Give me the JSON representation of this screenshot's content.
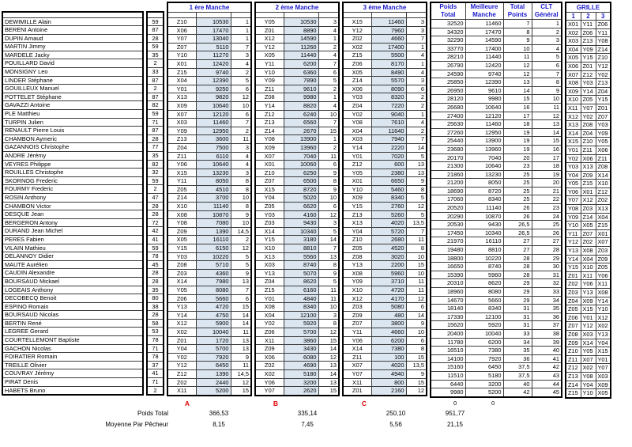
{
  "header": {
    "manche1": "1 ère Manche",
    "manche2": "2 ème Manche",
    "manche3": "3 ème Manche",
    "poids_total": [
      "Poids",
      "Total"
    ],
    "meilleure_manche": [
      "Meilleure",
      "Manche"
    ],
    "total_points": [
      "Total",
      "Points"
    ],
    "clt_general": [
      "CLT",
      "Général"
    ],
    "grille": "GRILLE",
    "grille_cols": [
      "1",
      "2",
      "3"
    ]
  },
  "columns": [
    "name",
    "club_number",
    "m1_peg",
    "m1_weight",
    "m1_rank",
    "m2_peg",
    "m2_weight",
    "m2_rank",
    "m3_peg",
    "m3_weight",
    "m3_rank",
    "poids_total",
    "meilleure_manche",
    "total_points",
    "clt_general"
  ],
  "rows": [
    [
      "DEWIMILLE Alain",
      59,
      "Z10",
      10530,
      1,
      "Y05",
      10530,
      3,
      "X15",
      11460,
      3,
      32520,
      11460,
      7,
      1
    ],
    [
      "BERENI Antoine",
      87,
      "X06",
      17470,
      1,
      "Z01",
      8890,
      4,
      "Y12",
      7960,
      3,
      34320,
      17470,
      8,
      2
    ],
    [
      "DUPIN Arnaud",
      28,
      "Y07",
      13040,
      1,
      "X12",
      14590,
      1,
      "Z02",
      4660,
      7,
      32290,
      14590,
      9,
      3
    ],
    [
      "MARTIN Jimmy",
      59,
      "Z07",
      5110,
      7,
      "Y12",
      11260,
      2,
      "X02",
      17400,
      1,
      33770,
      17400,
      10,
      4
    ],
    [
      "MARDELE Jacky",
      35,
      "Y10",
      11270,
      3,
      "X05",
      11440,
      4,
      "Z15",
      5500,
      4,
      28210,
      11440,
      11,
      5
    ],
    [
      "POUILLARD David",
      2,
      "X01",
      12420,
      4,
      "Y11",
      6200,
      7,
      "Z06",
      8170,
      1,
      26790,
      12420,
      12,
      6
    ],
    [
      "MONSIGNY Leo",
      33,
      "Z15",
      9740,
      2,
      "Y10",
      6360,
      6,
      "X05",
      8490,
      4,
      24590,
      9740,
      12,
      7
    ],
    [
      "LINDER Stéphane",
      87,
      "X04",
      12390,
      5,
      "Y09",
      7890,
      5,
      "Z14",
      5570,
      3,
      25850,
      12390,
      13,
      8
    ],
    [
      "GOUILLEUX Manuel",
      2,
      "Y01",
      9250,
      6,
      "Z11",
      9610,
      2,
      "X06",
      8090,
      6,
      26950,
      9610,
      14,
      9
    ],
    [
      "POTTELET Stéphane",
      87,
      "X13",
      9820,
      12,
      "Z08",
      9980,
      1,
      "Y03",
      8320,
      2,
      28120,
      9980,
      15,
      10
    ],
    [
      "GAVAZZI Antoine",
      82,
      "X09",
      10640,
      10,
      "Y14",
      8820,
      4,
      "Z04",
      7220,
      2,
      26680,
      10640,
      16,
      11
    ],
    [
      "PLE Matthieu",
      59,
      "X07",
      12120,
      6,
      "Z12",
      6240,
      10,
      "Y02",
      9040,
      1,
      27400,
      12120,
      17,
      12
    ],
    [
      "TURPIN Julien",
      71,
      "X03",
      11460,
      7,
      "Z13",
      6560,
      7,
      "Y08",
      7610,
      4,
      25630,
      11460,
      18,
      13
    ],
    [
      "RENAULT Pierre Louis",
      87,
      "Y09",
      12950,
      2,
      "Z14",
      2670,
      15,
      "X04",
      11640,
      2,
      27260,
      12950,
      19,
      14
    ],
    [
      "CHAMBON Aymeric",
      28,
      "Z13",
      3600,
      11,
      "Y08",
      13900,
      1,
      "X03",
      7940,
      7,
      25440,
      13900,
      19,
      15
    ],
    [
      "GAZANNOIS Christophe",
      77,
      "Z04",
      7500,
      3,
      "X09",
      13960,
      2,
      "Y14",
      2220,
      14,
      23680,
      13960,
      19,
      16
    ],
    [
      "ANDRE Jérémy",
      35,
      "Z11",
      6110,
      4,
      "X07",
      7040,
      11,
      "Y01",
      7020,
      5,
      20170,
      7040,
      20,
      17
    ],
    [
      "VEYRES Philippe",
      82,
      "Y06",
      10640,
      4,
      "X01",
      10060,
      6,
      "Z12",
      600,
      13,
      21300,
      10640,
      23,
      18
    ],
    [
      "ROUILLES Christophe",
      32,
      "X15",
      13230,
      3,
      "Z10",
      6250,
      9,
      "Y05",
      2380,
      13,
      21860,
      13230,
      25,
      19
    ],
    [
      "SKORNOG Frederic",
      59,
      "Y11",
      8050,
      8,
      "Z07",
      6500,
      8,
      "X01",
      6650,
      9,
      21200,
      8050,
      25,
      20
    ],
    [
      "FOURMY Frederic",
      2,
      "Z05",
      4510,
      8,
      "X15",
      8720,
      9,
      "Y10",
      5460,
      8,
      18690,
      8720,
      25,
      21
    ],
    [
      "ROSIN Anthony",
      47,
      "Z14",
      3700,
      10,
      "Y04",
      5020,
      10,
      "X09",
      8340,
      5,
      17060,
      8340,
      25,
      22
    ],
    [
      "CHAMBON Victor",
      28,
      "X10",
      11140,
      8,
      "Z05",
      6620,
      6,
      "Y15",
      2760,
      12,
      20520,
      11140,
      26,
      23
    ],
    [
      "DESQUE Jean",
      28,
      "X08",
      10870,
      9,
      "Y03",
      4160,
      12,
      "Z13",
      5260,
      5,
      20290,
      10870,
      26,
      24
    ],
    [
      "BERGERON Antony",
      72,
      "Y08",
      7080,
      10,
      "Z03",
      9430,
      3,
      "X13",
      4020,
      "13,5",
      20530,
      9430,
      "26,5",
      25
    ],
    [
      "DURAND Jean Michel",
      42,
      "Z09",
      1390,
      "14,5",
      "X14",
      10340,
      5,
      "Y04",
      5720,
      7,
      17450,
      10340,
      "26,5",
      26
    ],
    [
      "PERES Fabien",
      41,
      "X05",
      16110,
      2,
      "Y15",
      3180,
      14,
      "Z10",
      2680,
      11,
      21970,
      16110,
      27,
      27
    ],
    [
      "VILAIN Mathieu",
      59,
      "Y15",
      6150,
      12,
      "X10",
      8810,
      7,
      "Z05",
      4520,
      8,
      19480,
      8810,
      27,
      28
    ],
    [
      "DELANNOY Didier",
      78,
      "Y03",
      10220,
      5,
      "X13",
      5560,
      13,
      "Z08",
      3020,
      10,
      18800,
      10220,
      28,
      29
    ],
    [
      "MAUTE Aurélien",
      45,
      "Z08",
      5710,
      5,
      "X03",
      8740,
      8,
      "Y13",
      2200,
      15,
      16650,
      8740,
      28,
      30
    ],
    [
      "CAUDIN Alexandre",
      28,
      "Z03",
      4360,
      9,
      "Y13",
      5070,
      9,
      "X08",
      5960,
      10,
      15390,
      5960,
      28,
      31
    ],
    [
      "BOURSAUD Mickael",
      28,
      "X14",
      7980,
      13,
      "Z04",
      8620,
      5,
      "Y09",
      3710,
      11,
      20310,
      8620,
      29,
      32
    ],
    [
      "LOGEAIS Anthony",
      35,
      "Y05",
      8080,
      7,
      "Z15",
      6160,
      11,
      "X10",
      4720,
      11,
      18960,
      8080,
      29,
      33
    ],
    [
      "DECOBECQ Benoit",
      80,
      "Z06",
      5660,
      6,
      "Y01",
      4840,
      11,
      "X12",
      4170,
      12,
      14670,
      5660,
      29,
      34
    ],
    [
      "ESPINO Romain",
      38,
      "Y13",
      4720,
      15,
      "X08",
      8340,
      10,
      "Z03",
      5080,
      6,
      18140,
      8340,
      31,
      35
    ],
    [
      "BOURSAUD Nicolas",
      28,
      "Y14",
      4750,
      14,
      "X04",
      12100,
      3,
      "Z09",
      480,
      14,
      17330,
      12100,
      31,
      36
    ],
    [
      "BERTIN René",
      58,
      "X12",
      5900,
      14,
      "Y02",
      5920,
      8,
      "Z07",
      3800,
      9,
      15620,
      5920,
      31,
      37
    ],
    [
      "LEGREE Gerard",
      53,
      "X02",
      10040,
      11,
      "Z06",
      5700,
      12,
      "Y11",
      4660,
      10,
      20400,
      10040,
      33,
      38
    ],
    [
      "COURTELLEMONT Baptiste",
      78,
      "Z01",
      1720,
      13,
      "X11",
      3860,
      15,
      "Y06",
      6200,
      6,
      11780,
      6200,
      34,
      39
    ],
    [
      "GACHON Nicolas",
      71,
      "Y04",
      5700,
      13,
      "Z09",
      3430,
      14,
      "X14",
      7380,
      8,
      16510,
      7380,
      35,
      40
    ],
    [
      "FOIRATIER Romain",
      78,
      "Y02",
      7920,
      9,
      "X06",
      6080,
      12,
      "Z11",
      100,
      15,
      14100,
      7920,
      36,
      41
    ],
    [
      "TREILLE Olivier",
      37,
      "Y12",
      6450,
      11,
      "Z02",
      4690,
      13,
      "X07",
      4020,
      "13,5",
      15160,
      6450,
      "37,5",
      42
    ],
    [
      "COUVRAY Jérémy",
      41,
      "Z12",
      1390,
      "14,5",
      "X02",
      5180,
      14,
      "Y07",
      4940,
      9,
      11510,
      5180,
      "37,5",
      43
    ],
    [
      "PIRAT Denis",
      71,
      "Z02",
      2440,
      12,
      "Y06",
      3200,
      13,
      "X11",
      800,
      15,
      6440,
      3200,
      40,
      44
    ],
    [
      "HABETS Bruno",
      2,
      "X11",
      5200,
      15,
      "Y07",
      2620,
      15,
      "Z01",
      2160,
      12,
      9980,
      5200,
      42,
      45
    ]
  ],
  "grille": [
    [
      "X01",
      "Y11",
      "Z06"
    ],
    [
      "X02",
      "Z06",
      "Y11"
    ],
    [
      "X03",
      "Z13",
      "Y08"
    ],
    [
      "X04",
      "Y09",
      "Z14"
    ],
    [
      "X05",
      "Y15",
      "Z10"
    ],
    [
      "X06",
      "Z01",
      "Y12"
    ],
    [
      "X07",
      "Z12",
      "Y02"
    ],
    [
      "X08",
      "Y03",
      "Z13"
    ],
    [
      "X09",
      "Y14",
      "Z04"
    ],
    [
      "X10",
      "Z05",
      "Y15"
    ],
    [
      "X11",
      "Y07",
      "Z01"
    ],
    [
      "X12",
      "Y02",
      "Z07"
    ],
    [
      "X13",
      "Z08",
      "Y03"
    ],
    [
      "X14",
      "Z04",
      "Y09"
    ],
    [
      "X15",
      "Z10",
      "Y05"
    ],
    [
      "Y01",
      "Z11",
      "X06"
    ],
    [
      "Y02",
      "X06",
      "Z11"
    ],
    [
      "Y03",
      "X13",
      "Z08"
    ],
    [
      "Y04",
      "Z09",
      "X14"
    ],
    [
      "Y05",
      "Z15",
      "X10"
    ],
    [
      "Y06",
      "X01",
      "Z12"
    ],
    [
      "Y07",
      "X12",
      "Z02"
    ],
    [
      "Y08",
      "Z03",
      "X13"
    ],
    [
      "Y09",
      "Z14",
      "X04"
    ],
    [
      "Y10",
      "X05",
      "Z15"
    ],
    [
      "Y11",
      "Z07",
      "X01"
    ],
    [
      "Y12",
      "Z02",
      "X07"
    ],
    [
      "Y13",
      "X08",
      "Z03"
    ],
    [
      "Y14",
      "X04",
      "Z09"
    ],
    [
      "Y15",
      "X10",
      "Z05"
    ],
    [
      "Z01",
      "X11",
      "Y06"
    ],
    [
      "Z02",
      "Y06",
      "X11"
    ],
    [
      "Z03",
      "Y13",
      "X08"
    ],
    [
      "Z04",
      "X09",
      "Y14"
    ],
    [
      "Z05",
      "X15",
      "Y10"
    ],
    [
      "Z06",
      "Y01",
      "X12"
    ],
    [
      "Z07",
      "Y12",
      "X02"
    ],
    [
      "Z08",
      "X03",
      "Y13"
    ],
    [
      "Z09",
      "X14",
      "Y04"
    ],
    [
      "Z10",
      "Y05",
      "X15"
    ],
    [
      "Z11",
      "X07",
      "Y01"
    ],
    [
      "Z12",
      "X02",
      "Y07"
    ],
    [
      "Z13",
      "Y08",
      "X03"
    ],
    [
      "Z14",
      "Y04",
      "X09"
    ],
    [
      "Z15",
      "Y10",
      "X05"
    ]
  ],
  "footer": {
    "letters": [
      "A",
      "B",
      "C"
    ],
    "zeros": [
      "0",
      "0"
    ],
    "poids_total_label": "Poids Total",
    "poids_total_values": [
      "366,53",
      "335,14",
      "250,10",
      "951,77"
    ],
    "moyenne_label": "Moyenne Par Pêcheur",
    "moyenne_values": [
      "8,15",
      "7,45",
      "5,56",
      "21,15"
    ]
  },
  "colors": {
    "header_blue": "#1a1acb",
    "rank_red": "#e00000",
    "weight_cell_bg": "#dce6f1"
  }
}
